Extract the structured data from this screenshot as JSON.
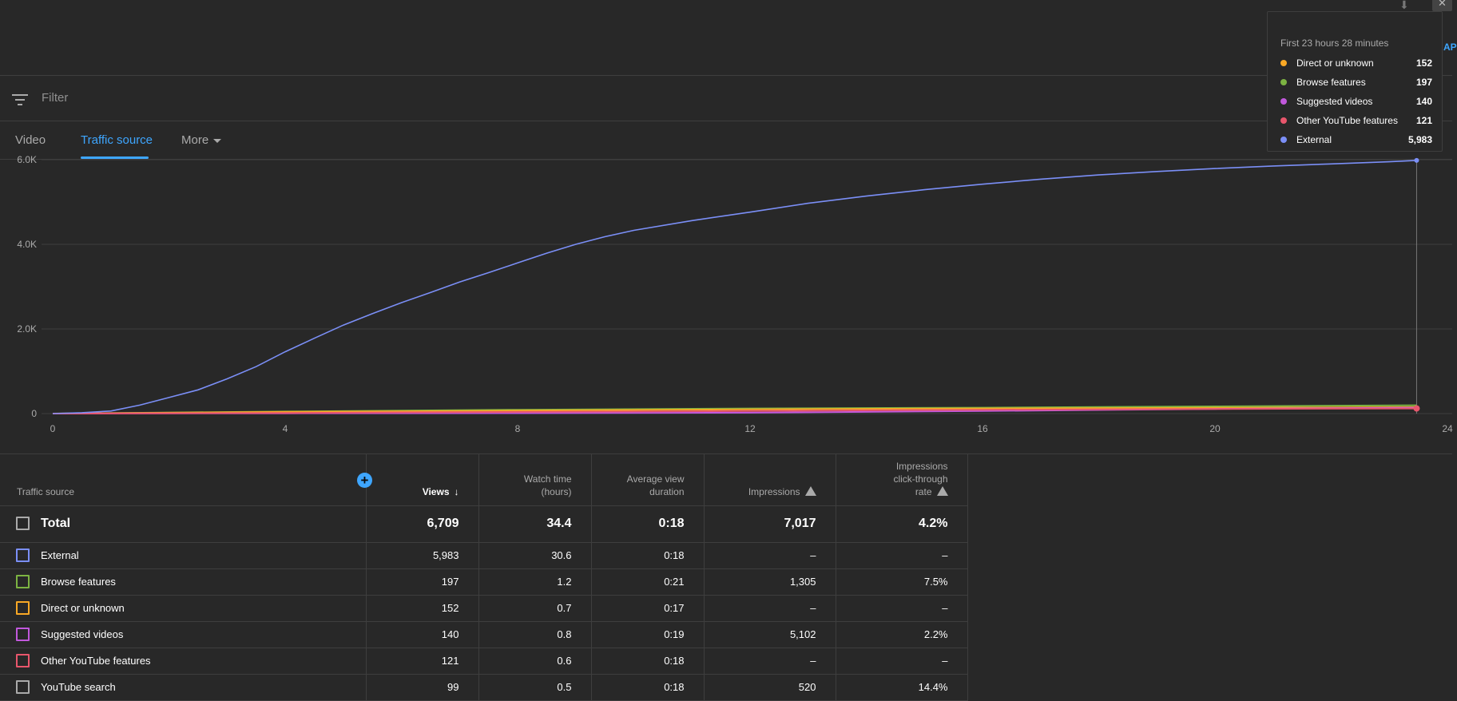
{
  "filter": {
    "placeholder": "Filter"
  },
  "tabs": [
    {
      "label": "Video"
    },
    {
      "label": "Traffic source"
    },
    {
      "label": "More"
    }
  ],
  "tooltip": {
    "title": "First 23 hours 28 minutes",
    "rows": [
      {
        "label": "Direct or unknown",
        "value": "152",
        "color": "#f9a825"
      },
      {
        "label": "Browse features",
        "value": "197",
        "color": "#7cb342"
      },
      {
        "label": "Suggested videos",
        "value": "140",
        "color": "#c158dc"
      },
      {
        "label": "Other YouTube features",
        "value": "121",
        "color": "#e8566c"
      },
      {
        "label": "External",
        "value": "5,983",
        "color": "#7b8ff7"
      }
    ]
  },
  "edge_link_text": "AP",
  "chart_data": {
    "type": "line",
    "x_ticks": [
      "0",
      "4",
      "8",
      "12",
      "16",
      "20",
      "24"
    ],
    "y_ticks": [
      "0",
      "2.0K",
      "4.0K",
      "6.0K"
    ],
    "xlim": [
      0,
      24
    ],
    "ylim": [
      0,
      6000
    ],
    "grid": true,
    "series": [
      {
        "name": "External",
        "color": "#7b8ff7",
        "x": [
          0,
          0.5,
          1,
          1.5,
          2,
          2.5,
          3,
          3.5,
          4,
          4.5,
          5,
          5.5,
          6,
          6.5,
          7,
          7.5,
          8,
          8.5,
          9,
          9.5,
          10,
          11,
          12,
          13,
          14,
          15,
          16,
          17,
          18,
          19,
          20,
          21,
          22,
          23,
          23.47
        ],
        "y": [
          0,
          20,
          60,
          200,
          380,
          560,
          820,
          1110,
          1460,
          1780,
          2090,
          2360,
          2620,
          2860,
          3110,
          3330,
          3560,
          3790,
          4000,
          4180,
          4330,
          4560,
          4760,
          4970,
          5140,
          5290,
          5420,
          5540,
          5640,
          5720,
          5790,
          5850,
          5900,
          5950,
          5983
        ]
      },
      {
        "name": "Browse features",
        "color": "#7cb342",
        "x": [
          0,
          4,
          8,
          12,
          16,
          20,
          23.47
        ],
        "y": [
          0,
          50,
          90,
          120,
          140,
          170,
          197
        ]
      },
      {
        "name": "Direct or unknown",
        "color": "#f9a825",
        "x": [
          0,
          4,
          8,
          12,
          16,
          20,
          23.47
        ],
        "y": [
          0,
          40,
          70,
          100,
          120,
          135,
          152
        ]
      },
      {
        "name": "Suggested videos",
        "color": "#c158dc",
        "x": [
          0,
          4,
          8,
          12,
          16,
          20,
          23.47
        ],
        "y": [
          0,
          5,
          10,
          20,
          60,
          110,
          140
        ]
      },
      {
        "name": "Other YouTube features",
        "color": "#e8566c",
        "x": [
          0,
          4,
          8,
          12,
          16,
          20,
          23.47
        ],
        "y": [
          0,
          15,
          40,
          60,
          90,
          110,
          121
        ]
      }
    ]
  },
  "table": {
    "headers": {
      "source": "Traffic source",
      "views": "Views",
      "watch_time_1": "Watch time",
      "watch_time_2": "(hours)",
      "avd_1": "Average view",
      "avd_2": "duration",
      "impressions": "Impressions",
      "ctr_1": "Impressions",
      "ctr_2": "click-through",
      "ctr_3": "rate"
    },
    "rows": [
      {
        "source": "Total",
        "views": "6,709",
        "watch": "34.4",
        "avd": "0:18",
        "impr": "7,017",
        "ctr": "4.2%",
        "color": "#aaaaaa"
      },
      {
        "source": "External",
        "views": "5,983",
        "watch": "30.6",
        "avd": "0:18",
        "impr": "–",
        "ctr": "–",
        "color": "#7b8ff7"
      },
      {
        "source": "Browse features",
        "views": "197",
        "watch": "1.2",
        "avd": "0:21",
        "impr": "1,305",
        "ctr": "7.5%",
        "color": "#7cb342"
      },
      {
        "source": "Direct or unknown",
        "views": "152",
        "watch": "0.7",
        "avd": "0:17",
        "impr": "–",
        "ctr": "–",
        "color": "#f9a825"
      },
      {
        "source": "Suggested videos",
        "views": "140",
        "watch": "0.8",
        "avd": "0:19",
        "impr": "5,102",
        "ctr": "2.2%",
        "color": "#c158dc"
      },
      {
        "source": "Other YouTube features",
        "views": "121",
        "watch": "0.6",
        "avd": "0:18",
        "impr": "–",
        "ctr": "–",
        "color": "#e8566c"
      },
      {
        "source": "YouTube search",
        "views": "99",
        "watch": "0.5",
        "avd": "0:18",
        "impr": "520",
        "ctr": "14.4%",
        "color": "#aaaaaa"
      }
    ]
  }
}
